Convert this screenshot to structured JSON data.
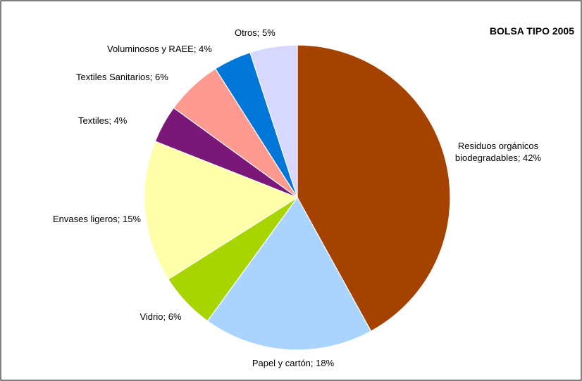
{
  "chart_data": {
    "type": "pie",
    "title": "BOLSA TIPO 2005",
    "slices": [
      {
        "label_lines": [
          "Residuos orgánicos",
          "biodegradables; 42%"
        ],
        "value": 42,
        "color": "#A64200"
      },
      {
        "label_lines": [
          "Papel y cartón; 18%"
        ],
        "value": 18,
        "color": "#A8D4FF"
      },
      {
        "label_lines": [
          "Vidrio; 6%"
        ],
        "value": 6,
        "color": "#A8D400"
      },
      {
        "label_lines": [
          "Envases ligeros; 15%"
        ],
        "value": 15,
        "color": "#FFFFAA"
      },
      {
        "label_lines": [
          "Textiles; 4%"
        ],
        "value": 4,
        "color": "#7A1778"
      },
      {
        "label_lines": [
          "Textiles Sanitarios; 6%"
        ],
        "value": 6,
        "color": "#FF9A90"
      },
      {
        "label_lines": [
          "Voluminosos y RAEE; 4%"
        ],
        "value": 4,
        "color": "#0077D8"
      },
      {
        "label_lines": [
          "Otros; 5%"
        ],
        "value": 5,
        "color": "#D7D7FF"
      }
    ],
    "legend": "none"
  }
}
